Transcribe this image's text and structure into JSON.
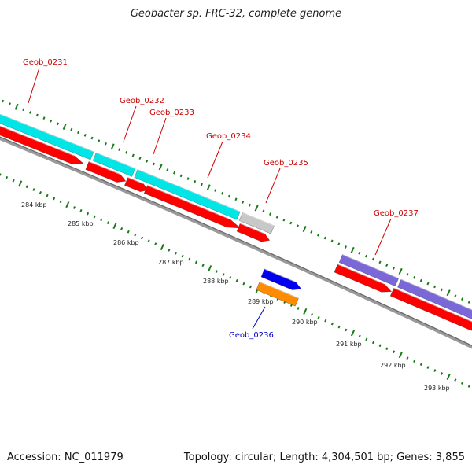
{
  "title": "Geobacter sp. FRC-32, complete genome",
  "footer": {
    "accession": "Accession: NC_011979",
    "summary": "Topology: circular; Length: 4,304,501 bp; Genes: 3,855"
  },
  "colors": {
    "label_red": "#cc0000",
    "label_blue": "#0000cc",
    "tick_green": "#1a7a1a",
    "backbone": "#888888",
    "cds_red": "#ff0000",
    "cyan": "#00e5e5",
    "gray": "#c8c8c8",
    "purple": "#7b68d8",
    "blue": "#0000ee",
    "orange": "#ff8c00"
  },
  "scale_labels": [
    "284 kbp",
    "285 kbp",
    "286 kbp",
    "287 kbp",
    "288 kbp",
    "289 kbp",
    "290 kbp",
    "291 kbp",
    "292 kbp",
    "293 kbp"
  ],
  "gene_labels": [
    {
      "name": "Geob_0231",
      "color": "red"
    },
    {
      "name": "Geob_0232",
      "color": "red"
    },
    {
      "name": "Geob_0233",
      "color": "red"
    },
    {
      "name": "Geob_0234",
      "color": "red"
    },
    {
      "name": "Geob_0235",
      "color": "red"
    },
    {
      "name": "Geob_0236",
      "color": "blue"
    },
    {
      "name": "Geob_0237",
      "color": "red"
    }
  ]
}
